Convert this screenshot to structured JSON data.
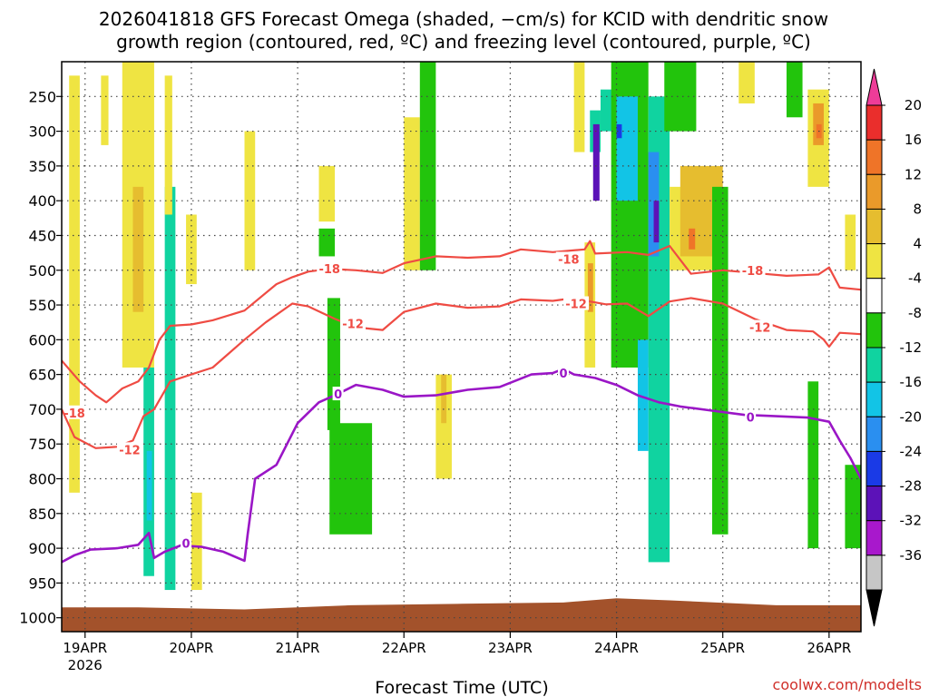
{
  "colors": {
    "dsgz": "#ef4b43",
    "freezing": "#9a16c6",
    "ground": "#a3522b",
    "grid": "#444444",
    "credit": "#d0302a",
    "colorbar": [
      "#8a8a8a",
      "#c6c6c6",
      "#a818cc",
      "#5c12b8",
      "#1a3ae6",
      "#2a8ff0",
      "#12c4e6",
      "#10d3a0",
      "#22c40c",
      "#ffffff",
      "#efe442",
      "#e6bd2f",
      "#ea9a2a",
      "#ef7428",
      "#ea2e2c",
      "#ee3c98"
    ]
  },
  "chart_data": {
    "type": "heatmap",
    "title_lines": [
      "2026041818 GFS Forecast Omega (shaded, −cm/s) for KCID with dendritic snow",
      "growth region (contoured, red, ºC) and freezing level (contoured, purple, ºC)"
    ],
    "xlabel": "Forecast Time (UTC)",
    "credit": "coolwx.com/modelts",
    "x_unit": "days since 19APR 00Z",
    "xlim": [
      -0.22,
      7.3
    ],
    "x_ticks": [
      {
        "label": "19APR",
        "value": 0,
        "sub": "2026"
      },
      {
        "label": "20APR",
        "value": 1
      },
      {
        "label": "21APR",
        "value": 2
      },
      {
        "label": "22APR",
        "value": 3
      },
      {
        "label": "23APR",
        "value": 4
      },
      {
        "label": "24APR",
        "value": 5
      },
      {
        "label": "25APR",
        "value": 6
      },
      {
        "label": "26APR",
        "value": 7
      }
    ],
    "y_unit": "hPa",
    "ylim": [
      1020,
      200
    ],
    "y_ticks": [
      {
        "label": "250",
        "value": 250
      },
      {
        "label": "300",
        "value": 300
      },
      {
        "label": "350",
        "value": 350
      },
      {
        "label": "400",
        "value": 400
      },
      {
        "label": "450",
        "value": 450
      },
      {
        "label": "500",
        "value": 500
      },
      {
        "label": "550",
        "value": 550
      },
      {
        "label": "600",
        "value": 600
      },
      {
        "label": "650",
        "value": 650
      },
      {
        "label": "700",
        "value": 700
      },
      {
        "label": "750",
        "value": 750
      },
      {
        "label": "800",
        "value": 800
      },
      {
        "label": "850",
        "value": 850
      },
      {
        "label": "900",
        "value": 900
      },
      {
        "label": "950",
        "value": 950
      },
      {
        "label": "1000",
        "value": 1000
      }
    ],
    "colorbar": {
      "labels": [
        "20",
        "16",
        "12",
        "8",
        "4",
        "-4",
        "-8",
        "-12",
        "-16",
        "-20",
        "-24",
        "-28",
        "-32",
        "-36"
      ],
      "levels": [
        -36,
        -32,
        -28,
        -24,
        -20,
        -16,
        -12,
        -8,
        -4,
        4,
        8,
        12,
        16,
        20
      ]
    },
    "shading": [
      {
        "x0": -0.15,
        "x1": -0.05,
        "p0": 220,
        "p1": 820,
        "v": 6
      },
      {
        "x0": 0.15,
        "x1": 0.22,
        "p0": 220,
        "p1": 320,
        "v": 6
      },
      {
        "x0": 0.35,
        "x1": 0.65,
        "p0": 200,
        "p1": 640,
        "v": 6
      },
      {
        "x0": 0.45,
        "x1": 0.55,
        "p0": 380,
        "p1": 560,
        "v": 10
      },
      {
        "x0": 0.55,
        "x1": 0.65,
        "p0": 640,
        "p1": 940,
        "v": -10
      },
      {
        "x0": 0.58,
        "x1": 0.63,
        "p0": 760,
        "p1": 860,
        "v": -14
      },
      {
        "x0": 0.75,
        "x1": 0.85,
        "p0": 380,
        "p1": 960,
        "v": -10
      },
      {
        "x0": 0.75,
        "x1": 0.82,
        "p0": 220,
        "p1": 420,
        "v": 6
      },
      {
        "x0": 0.95,
        "x1": 1.05,
        "p0": 420,
        "p1": 520,
        "v": 6
      },
      {
        "x0": 1.0,
        "x1": 1.1,
        "p0": 820,
        "p1": 960,
        "v": 6
      },
      {
        "x0": 1.5,
        "x1": 1.6,
        "p0": 300,
        "p1": 500,
        "v": 6
      },
      {
        "x0": 2.2,
        "x1": 2.35,
        "p0": 350,
        "p1": 430,
        "v": 6
      },
      {
        "x0": 2.2,
        "x1": 2.35,
        "p0": 440,
        "p1": 480,
        "v": -6
      },
      {
        "x0": 2.28,
        "x1": 2.4,
        "p0": 540,
        "p1": 730,
        "v": -8
      },
      {
        "x0": 2.3,
        "x1": 2.7,
        "p0": 720,
        "p1": 880,
        "v": -8
      },
      {
        "x0": 3.0,
        "x1": 3.15,
        "p0": 280,
        "p1": 500,
        "v": 6
      },
      {
        "x0": 3.15,
        "x1": 3.3,
        "p0": 200,
        "p1": 500,
        "v": -8
      },
      {
        "x0": 3.3,
        "x1": 3.45,
        "p0": 650,
        "p1": 800,
        "v": 6
      },
      {
        "x0": 3.35,
        "x1": 3.4,
        "p0": 650,
        "p1": 720,
        "v": 10
      },
      {
        "x0": 4.6,
        "x1": 4.7,
        "p0": 200,
        "p1": 330,
        "v": 6
      },
      {
        "x0": 4.7,
        "x1": 4.8,
        "p0": 460,
        "p1": 640,
        "v": 6
      },
      {
        "x0": 4.73,
        "x1": 4.78,
        "p0": 490,
        "p1": 560,
        "v": 12
      },
      {
        "x0": 4.75,
        "x1": 4.85,
        "p0": 270,
        "p1": 330,
        "v": -10
      },
      {
        "x0": 4.78,
        "x1": 4.84,
        "p0": 290,
        "p1": 400,
        "v": -26
      },
      {
        "x0": 4.85,
        "x1": 5.1,
        "p0": 240,
        "p1": 300,
        "v": -10
      },
      {
        "x0": 4.95,
        "x1": 5.3,
        "p0": 200,
        "p1": 640,
        "v": -8
      },
      {
        "x0": 5.0,
        "x1": 5.2,
        "p0": 250,
        "p1": 400,
        "v": -14
      },
      {
        "x0": 5.0,
        "x1": 5.05,
        "p0": 290,
        "p1": 310,
        "v": -22
      },
      {
        "x0": 5.3,
        "x1": 5.5,
        "p0": 250,
        "p1": 920,
        "v": -12
      },
      {
        "x0": 5.3,
        "x1": 5.4,
        "p0": 330,
        "p1": 480,
        "v": -20
      },
      {
        "x0": 5.35,
        "x1": 5.4,
        "p0": 400,
        "p1": 460,
        "v": -26
      },
      {
        "x0": 5.2,
        "x1": 5.3,
        "p0": 600,
        "p1": 760,
        "v": -16
      },
      {
        "x0": 5.45,
        "x1": 5.75,
        "p0": 200,
        "p1": 300,
        "v": -8
      },
      {
        "x0": 5.5,
        "x1": 5.9,
        "p0": 380,
        "p1": 500,
        "v": 6
      },
      {
        "x0": 5.6,
        "x1": 6.0,
        "p0": 350,
        "p1": 480,
        "v": 10
      },
      {
        "x0": 5.68,
        "x1": 5.74,
        "p0": 440,
        "p1": 470,
        "v": 18
      },
      {
        "x0": 5.9,
        "x1": 6.05,
        "p0": 380,
        "p1": 880,
        "v": -8
      },
      {
        "x0": 6.15,
        "x1": 6.3,
        "p0": 200,
        "p1": 260,
        "v": 6
      },
      {
        "x0": 6.6,
        "x1": 6.75,
        "p0": 200,
        "p1": 280,
        "v": -8
      },
      {
        "x0": 6.8,
        "x1": 7.0,
        "p0": 240,
        "p1": 380,
        "v": 6
      },
      {
        "x0": 6.85,
        "x1": 6.95,
        "p0": 260,
        "p1": 320,
        "v": 14
      },
      {
        "x0": 6.88,
        "x1": 6.93,
        "p0": 290,
        "p1": 310,
        "v": 18
      },
      {
        "x0": 6.8,
        "x1": 6.9,
        "p0": 660,
        "p1": 900,
        "v": -8
      },
      {
        "x0": 7.15,
        "x1": 7.3,
        "p0": 780,
        "p1": 900,
        "v": -8
      },
      {
        "x0": 7.15,
        "x1": 7.25,
        "p0": 420,
        "p1": 500,
        "v": 6
      }
    ],
    "contours": [
      {
        "name": "-18 C",
        "color": "dsgz",
        "label": "-18",
        "label_at": [
          [
            -0.1,
            705
          ],
          [
            2.3,
            498
          ],
          [
            4.55,
            484
          ],
          [
            6.28,
            500
          ]
        ],
        "x": [
          -0.22,
          -0.05,
          0.1,
          0.2,
          0.35,
          0.5,
          0.6,
          0.7,
          0.8,
          1.0,
          1.2,
          1.5,
          1.8,
          1.95,
          2.1,
          2.3,
          2.55,
          2.8,
          3.0,
          3.3,
          3.6,
          3.9,
          4.1,
          4.4,
          4.7,
          4.75,
          4.8,
          5.1,
          5.3,
          5.5,
          5.7,
          6.0,
          6.3,
          6.6,
          6.9,
          7.0,
          7.1,
          7.3
        ],
        "p": [
          630,
          660,
          680,
          690,
          670,
          660,
          640,
          600,
          580,
          578,
          572,
          558,
          520,
          510,
          502,
          498,
          500,
          504,
          490,
          480,
          482,
          480,
          470,
          474,
          470,
          458,
          476,
          474,
          478,
          465,
          505,
          500,
          504,
          508,
          506,
          496,
          525,
          528
        ]
      },
      {
        "name": "-12 C",
        "color": "dsgz",
        "label": "-12",
        "label_at": [
          [
            0.42,
            758
          ],
          [
            2.52,
            577
          ],
          [
            4.62,
            548
          ],
          [
            6.35,
            582
          ]
        ],
        "x": [
          -0.22,
          -0.1,
          0.1,
          0.3,
          0.45,
          0.55,
          0.65,
          0.8,
          1.0,
          1.2,
          1.5,
          1.7,
          1.95,
          2.1,
          2.35,
          2.55,
          2.8,
          3.0,
          3.3,
          3.6,
          3.9,
          4.1,
          4.4,
          4.6,
          4.75,
          4.9,
          5.1,
          5.3,
          5.5,
          5.7,
          6.0,
          6.3,
          6.6,
          6.85,
          6.95,
          7.0,
          7.1,
          7.3
        ],
        "p": [
          700,
          740,
          756,
          754,
          745,
          710,
          700,
          660,
          650,
          640,
          600,
          575,
          548,
          552,
          570,
          582,
          586,
          560,
          548,
          554,
          552,
          542,
          544,
          540,
          545,
          549,
          548,
          566,
          545,
          540,
          548,
          570,
          586,
          588,
          600,
          610,
          590,
          592
        ]
      },
      {
        "name": "0 C (freezing level)",
        "color": "freezing",
        "label": "0",
        "label_at": [
          [
            0.95,
            893
          ],
          [
            2.38,
            678
          ],
          [
            4.5,
            648
          ],
          [
            6.26,
            711
          ]
        ],
        "x": [
          -0.22,
          -0.1,
          0.05,
          0.3,
          0.5,
          0.6,
          0.65,
          0.75,
          0.9,
          1.1,
          1.3,
          1.5,
          1.53,
          1.6,
          1.8,
          2.0,
          2.2,
          2.35,
          2.55,
          2.8,
          3.0,
          3.3,
          3.6,
          3.9,
          4.2,
          4.4,
          4.5,
          4.6,
          4.8,
          5.0,
          5.2,
          5.4,
          5.6,
          5.9,
          6.2,
          6.5,
          6.8,
          7.0,
          7.1,
          7.2,
          7.3
        ],
        "p": [
          920,
          910,
          902,
          900,
          895,
          878,
          914,
          905,
          896,
          898,
          905,
          918,
          880,
          800,
          780,
          720,
          690,
          680,
          665,
          672,
          682,
          680,
          672,
          668,
          650,
          648,
          642,
          650,
          655,
          665,
          680,
          690,
          696,
          702,
          708,
          710,
          712,
          718,
          745,
          770,
          800
        ]
      }
    ],
    "ground": {
      "x": [
        -0.22,
        0.5,
        1.5,
        2.5,
        3.5,
        4.5,
        5.0,
        5.5,
        6.5,
        7.3
      ],
      "p": [
        985,
        985,
        988,
        982,
        980,
        978,
        972,
        975,
        982,
        982
      ]
    }
  }
}
